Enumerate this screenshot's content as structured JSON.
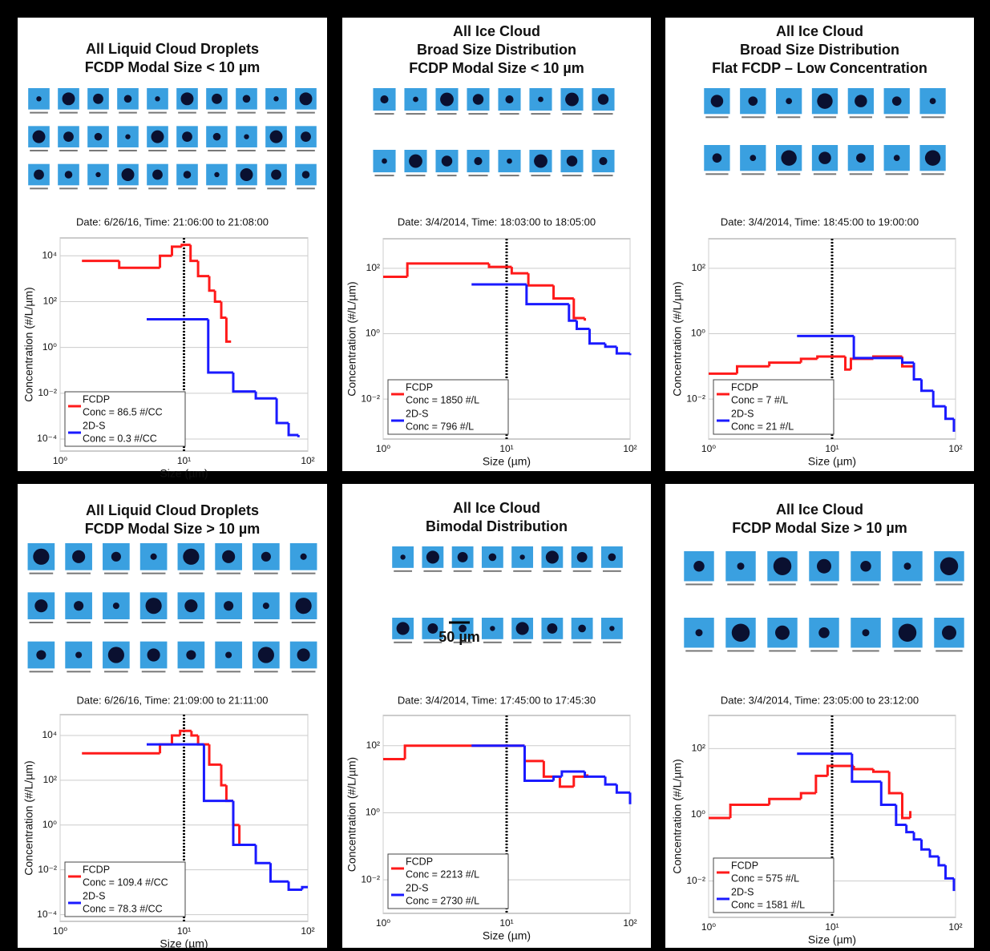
{
  "chart_data": [
    {
      "type": "line",
      "title": [
        "All Liquid Cloud Droplets",
        "FCDP Modal Size < 10 µm"
      ],
      "subtitle": "Date: 6/26/16, Time: 21:06:00 to 21:08:00",
      "x_label": "Size (µm)",
      "y_label": "Concentration (#/L/µm)",
      "xscale": "log",
      "yscale": "log",
      "grid": true,
      "legend": "lower left",
      "vline": 10,
      "xlim": [
        1,
        100
      ],
      "xticks": [
        {
          "value": 1,
          "label": "10⁰"
        },
        {
          "value": 10,
          "label": "10¹"
        },
        {
          "value": 100,
          "label": "10²"
        }
      ],
      "ylim": [
        3e-05,
        60000
      ],
      "yticks": [
        {
          "value": 0.0001,
          "label": "10⁻⁴"
        },
        {
          "value": 0.01,
          "label": "10⁻²"
        },
        {
          "value": 1,
          "label": "10⁰"
        },
        {
          "value": 100,
          "label": "10²"
        },
        {
          "value": 10000,
          "label": "10⁴"
        }
      ],
      "series": [
        {
          "name": "FCDP",
          "color": "#ff1a1a",
          "conc": "Conc = 86.5 #/CC",
          "x": [
            1.5,
            3.0,
            6.4,
            8,
            9.6,
            11.3,
            13,
            16,
            17.8,
            20,
            22,
            24
          ],
          "values": [
            6000,
            3000,
            10000,
            25000,
            30000,
            6000,
            1300,
            300,
            100,
            20,
            1.8,
            1.8
          ]
        },
        {
          "name": "2D-S",
          "color": "#1a1aff",
          "conc": "Conc = 0.3 #/CC",
          "x": [
            5,
            15.7,
            25,
            38,
            56,
            70,
            84
          ],
          "values": [
            17,
            0.08,
            0.012,
            0.006,
            0.0005,
            0.00015,
            0.00012
          ]
        }
      ]
    },
    {
      "type": "line",
      "title": [
        "All Ice Cloud",
        "Broad Size Distribution",
        "FCDP Modal Size < 10 µm"
      ],
      "subtitle": "Date: 3/4/2014, Time: 18:03:00 to 18:05:00",
      "x_label": "Size (µm)",
      "y_label": "Concentration (#/L/µm)",
      "xscale": "log",
      "yscale": "log",
      "grid": true,
      "legend": "lower left",
      "vline": 10,
      "xlim": [
        1,
        100
      ],
      "xticks": [
        {
          "value": 1,
          "label": "10⁰"
        },
        {
          "value": 10,
          "label": "10¹"
        },
        {
          "value": 100,
          "label": "10²"
        }
      ],
      "ylim": [
        0.0006,
        800
      ],
      "yticks": [
        {
          "value": 0.01,
          "label": "10⁻²"
        },
        {
          "value": 1,
          "label": "10⁰"
        },
        {
          "value": 100,
          "label": "10²"
        }
      ],
      "series": [
        {
          "name": "FCDP",
          "color": "#ff1a1a",
          "conc": "Conc = 1850 #/L",
          "x": [
            1,
            1.57,
            7.2,
            11,
            15,
            24,
            35,
            43
          ],
          "values": [
            55,
            140,
            110,
            70,
            30,
            12,
            3,
            2.5
          ]
        },
        {
          "name": "2D-S",
          "color": "#1a1aff",
          "conc": "Conc = 796 #/L",
          "x": [
            5.2,
            14.5,
            32,
            37,
            47,
            63,
            78,
            100
          ],
          "values": [
            32,
            8,
            2.5,
            1.4,
            0.5,
            0.4,
            0.25,
            0.22
          ]
        }
      ]
    },
    {
      "type": "line",
      "title": [
        "All Ice Cloud",
        "Broad Size Distribution",
        "Flat FCDP – Low Concentration"
      ],
      "subtitle": "Date: 3/4/2014, Time: 18:45:00 to 19:00:00",
      "x_label": "Size (µm)",
      "y_label": "Concentration (#/L/µm)",
      "xscale": "log",
      "yscale": "log",
      "grid": true,
      "legend": "lower left",
      "vline": 10,
      "xlim": [
        1,
        100
      ],
      "xticks": [
        {
          "value": 1,
          "label": "10⁰"
        },
        {
          "value": 10,
          "label": "10¹"
        },
        {
          "value": 100,
          "label": "10²"
        }
      ],
      "ylim": [
        0.0006,
        800
      ],
      "yticks": [
        {
          "value": 0.01,
          "label": "10⁻²"
        },
        {
          "value": 1,
          "label": "10⁰"
        },
        {
          "value": 100,
          "label": "10²"
        }
      ],
      "series": [
        {
          "name": "FCDP",
          "color": "#ff1a1a",
          "conc": "Conc = 7 #/L",
          "x": [
            1,
            1.7,
            3.1,
            5.6,
            7.6,
            12.8,
            14.2,
            21.6,
            37,
            46
          ],
          "values": [
            0.06,
            0.1,
            0.13,
            0.17,
            0.2,
            0.08,
            0.17,
            0.2,
            0.1,
            0.1
          ]
        },
        {
          "name": "2D-S",
          "color": "#1a1aff",
          "conc": "Conc = 21 #/L",
          "x": [
            5.2,
            15,
            37,
            46,
            53,
            66,
            83,
            97
          ],
          "values": [
            0.85,
            0.18,
            0.13,
            0.04,
            0.018,
            0.006,
            0.0025,
            0.001
          ]
        }
      ]
    },
    {
      "type": "line",
      "title": [
        "All Liquid Cloud Droplets",
        "FCDP Modal Size > 10 µm"
      ],
      "subtitle": "Date: 6/26/16, Time: 21:09:00 to 21:11:00",
      "x_label": "Size (µm)",
      "y_label": "Concentration (#/L/µm)",
      "xscale": "log",
      "yscale": "log",
      "grid": true,
      "legend": "lower left",
      "vline": 10,
      "xlim": [
        1,
        100
      ],
      "xticks": [
        {
          "value": 1,
          "label": "10⁰"
        },
        {
          "value": 10,
          "label": "10¹"
        },
        {
          "value": 100,
          "label": "10²"
        }
      ],
      "ylim": [
        5e-05,
        85000
      ],
      "yticks": [
        {
          "value": 0.0001,
          "label": "10⁻⁴"
        },
        {
          "value": 0.01,
          "label": "10⁻²"
        },
        {
          "value": 1,
          "label": "10⁰"
        },
        {
          "value": 100,
          "label": "10²"
        },
        {
          "value": 10000,
          "label": "10⁴"
        }
      ],
      "series": [
        {
          "name": "FCDP",
          "color": "#ff1a1a",
          "conc": "Conc = 109.4 #/CC",
          "x": [
            1.5,
            6.4,
            8,
            9.3,
            11.5,
            13,
            16,
            20,
            22,
            25,
            28
          ],
          "values": [
            1600,
            4000,
            10000,
            16000,
            10000,
            4000,
            500,
            60,
            12,
            1,
            0.13
          ]
        },
        {
          "name": "2D-S",
          "color": "#1a1aff",
          "conc": "Conc = 78.3 #/CC",
          "x": [
            5,
            14.5,
            25,
            38,
            50,
            70,
            90,
            100
          ],
          "values": [
            4000,
            12,
            0.13,
            0.02,
            0.003,
            0.0013,
            0.0017,
            0.0017
          ]
        }
      ]
    },
    {
      "type": "line",
      "title": [
        "All Ice Cloud",
        "Bimodal Distribution"
      ],
      "subtitle": "Date: 3/4/2014, Time: 17:45:00 to 17:45:30",
      "annotation": "50 µm",
      "x_label": "Size (µm)",
      "y_label": "Concentration (#/L/µm)",
      "xscale": "log",
      "yscale": "log",
      "grid": true,
      "legend": "lower left",
      "vline": 10,
      "xlim": [
        1,
        100
      ],
      "xticks": [
        {
          "value": 1,
          "label": "10⁰"
        },
        {
          "value": 10,
          "label": "10¹"
        },
        {
          "value": 100,
          "label": "10²"
        }
      ],
      "ylim": [
        0.001,
        800
      ],
      "yticks": [
        {
          "value": 0.01,
          "label": "10⁻²"
        },
        {
          "value": 1,
          "label": "10⁰"
        },
        {
          "value": 100,
          "label": "10²"
        }
      ],
      "series": [
        {
          "name": "FCDP",
          "color": "#ff1a1a",
          "conc": "Conc = 2213 #/L",
          "x": [
            1,
            1.5,
            6.2,
            11,
            14,
            20,
            27,
            35,
            45
          ],
          "values": [
            40,
            100,
            100,
            100,
            35,
            12,
            6,
            12,
            14
          ]
        },
        {
          "name": "2D-S",
          "color": "#1a1aff",
          "conc": "Conc = 2730 #/L",
          "x": [
            5.2,
            14,
            24,
            28,
            43,
            63,
            78,
            100
          ],
          "values": [
            100,
            9,
            12,
            17,
            12,
            7,
            4,
            1.8
          ]
        }
      ]
    },
    {
      "type": "line",
      "title": [
        "All Ice Cloud",
        "FCDP Modal Size > 10 µm"
      ],
      "subtitle": "Date: 3/4/2014, Time: 23:05:00 to 23:12:00",
      "x_label": "Size (µm)",
      "y_label": "Concentration (#/L/µm)",
      "xscale": "log",
      "yscale": "log",
      "grid": true,
      "legend": "lower left",
      "vline": 10,
      "xlim": [
        1,
        100
      ],
      "xticks": [
        {
          "value": 1,
          "label": "10⁰"
        },
        {
          "value": 10,
          "label": "10¹"
        },
        {
          "value": 100,
          "label": "10²"
        }
      ],
      "ylim": [
        0.0008,
        1000
      ],
      "yticks": [
        {
          "value": 0.01,
          "label": "10⁻²"
        },
        {
          "value": 1,
          "label": "10⁰"
        },
        {
          "value": 100,
          "label": "10²"
        }
      ],
      "series": [
        {
          "name": "FCDP",
          "color": "#ff1a1a",
          "conc": "Conc = 575 #/L",
          "x": [
            1,
            1.5,
            3.1,
            5.6,
            7.4,
            9.2,
            15,
            21.6,
            29,
            37,
            43
          ],
          "values": [
            0.8,
            2,
            3,
            4.5,
            15,
            30,
            24,
            20,
            4.5,
            0.8,
            1.3
          ]
        },
        {
          "name": "2D-S",
          "color": "#1a1aff",
          "conc": "Conc = 1581 #/L",
          "x": [
            5.2,
            14.5,
            25,
            33,
            40,
            46,
            53,
            62,
            73,
            83,
            97
          ],
          "values": [
            70,
            10,
            2,
            0.5,
            0.3,
            0.18,
            0.09,
            0.055,
            0.03,
            0.012,
            0.005
          ]
        }
      ]
    }
  ]
}
